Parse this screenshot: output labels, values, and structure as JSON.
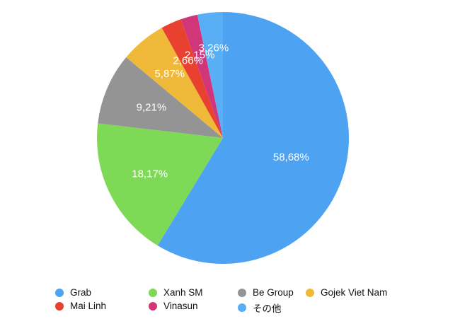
{
  "chart_data": {
    "type": "pie",
    "title": "",
    "slices": [
      {
        "label": "Grab",
        "value": 58.68,
        "display": "58,68%",
        "color": "#4da3f2"
      },
      {
        "label": "Xanh SM",
        "value": 18.17,
        "display": "18,17%",
        "color": "#7ed957"
      },
      {
        "label": "Be Group",
        "value": 9.21,
        "display": "9,21%",
        "color": "#949494"
      },
      {
        "label": "Gojek Viet Nam",
        "value": 5.87,
        "display": "5,87%",
        "color": "#f0b93a"
      },
      {
        "label": "Mai Linh",
        "value": 2.66,
        "display": "2,66%",
        "color": "#e8412f"
      },
      {
        "label": "Vinasun",
        "value": 2.15,
        "display": "2,15%",
        "color": "#d1357a"
      },
      {
        "label": "その他",
        "value": 3.26,
        "display": "3,26%",
        "color": "#5aaef5"
      }
    ],
    "legend_position": "bottom",
    "start_angle_deg": 0,
    "direction": "clockwise"
  }
}
